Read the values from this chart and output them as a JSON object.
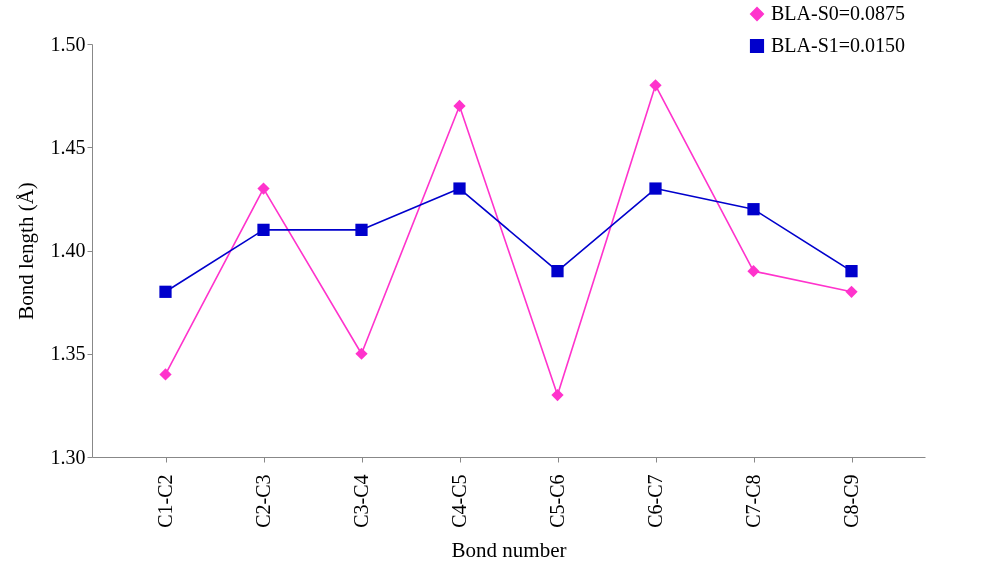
{
  "chart_data": {
    "type": "line",
    "xlabel": "Bond number",
    "ylabel": "Bond length (Å)",
    "categories": [
      "C1-C2",
      "C2-C3",
      "C3-C4",
      "C4-C5",
      "C5-C6",
      "C6-C7",
      "C7-C8",
      "C8-C9"
    ],
    "series": [
      {
        "name": "BLA-S0=0.0875",
        "color": "#ff33cc",
        "marker": "diamond",
        "values": [
          1.34,
          1.43,
          1.35,
          1.47,
          1.33,
          1.48,
          1.39,
          1.38
        ]
      },
      {
        "name": "BLA-S1=0.0150",
        "color": "#0000cc",
        "marker": "square",
        "values": [
          1.38,
          1.41,
          1.41,
          1.43,
          1.39,
          1.43,
          1.42,
          1.39
        ]
      }
    ],
    "ylim": [
      1.3,
      1.5
    ],
    "yticks": [
      {
        "value": 1.3,
        "label": "1.30"
      },
      {
        "value": 1.35,
        "label": "1.35"
      },
      {
        "value": 1.4,
        "label": "1.40"
      },
      {
        "value": 1.45,
        "label": "1.45"
      },
      {
        "value": 1.5,
        "label": "1.50"
      }
    ],
    "grid": false,
    "legend": "top right",
    "line_style": "solid"
  }
}
